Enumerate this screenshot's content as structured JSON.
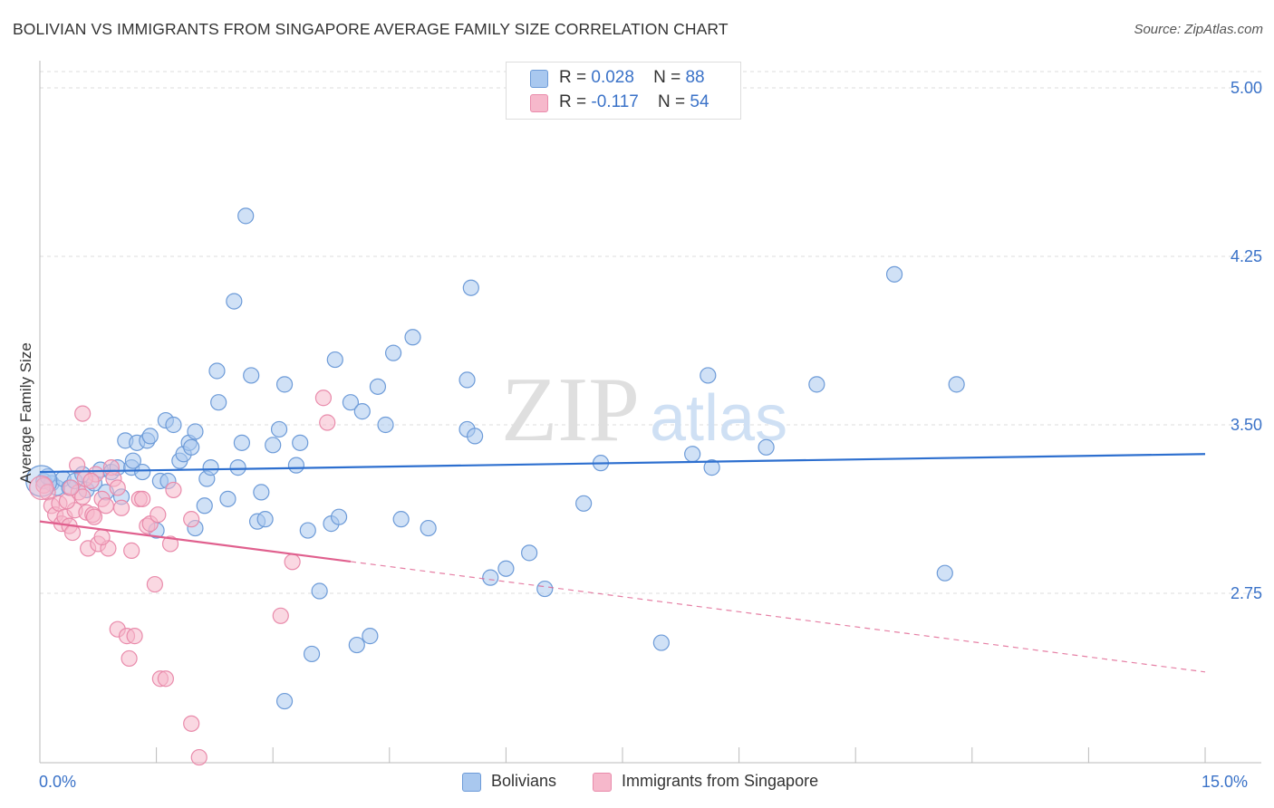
{
  "title": "BOLIVIAN VS IMMIGRANTS FROM SINGAPORE AVERAGE FAMILY SIZE CORRELATION CHART",
  "source": "Source: ZipAtlas.com",
  "watermark": {
    "zip": "ZIP",
    "atlas": "atlas"
  },
  "legend_top": {
    "rows": [
      {
        "r_label": "R =",
        "r_value": "0.028",
        "n_label": "N =",
        "n_value": "88"
      },
      {
        "r_label": "R =",
        "r_value": "-0.117",
        "n_label": "N =",
        "n_value": "54"
      }
    ]
  },
  "legend_bottom": {
    "series1": "Bolivians",
    "series2": "Immigrants from Singapore"
  },
  "colors": {
    "blue_fill": "#a9c8ef",
    "blue_stroke": "#6d9bd8",
    "blue_line": "#2d6fcf",
    "pink_fill": "#f6b8cb",
    "pink_stroke": "#e98bab",
    "pink_line": "#e0608e",
    "tick_text": "#3a72c8",
    "grid": "#dcdcdc"
  },
  "chart_data": {
    "type": "scatter",
    "title": "BOLIVIAN VS IMMIGRANTS FROM SINGAPORE AVERAGE FAMILY SIZE CORRELATION CHART",
    "xlabel": "",
    "ylabel": "Average Family Size",
    "xlim": [
      0.0,
      15.0
    ],
    "ylim": [
      2.0,
      5.12
    ],
    "x_tick_labels": [
      "0.0%",
      "15.0%"
    ],
    "y_ticks": [
      2.75,
      3.5,
      4.25,
      5.0
    ],
    "y_tick_labels": [
      "2.75",
      "3.50",
      "4.25",
      "5.00"
    ],
    "grid": true,
    "legend_placement": "top-center",
    "series": [
      {
        "name": "Bolivians",
        "R": 0.028,
        "N": 88,
        "trend": {
          "x": [
            0.0,
            15.0
          ],
          "y": [
            3.29,
            3.37
          ],
          "style": "solid"
        },
        "points": [
          [
            0.05,
            3.25
          ],
          [
            0.15,
            3.24
          ],
          [
            0.22,
            3.22
          ],
          [
            0.3,
            3.26
          ],
          [
            0.38,
            3.22
          ],
          [
            0.45,
            3.25
          ],
          [
            0.55,
            3.28
          ],
          [
            0.6,
            3.21
          ],
          [
            0.7,
            3.24
          ],
          [
            0.78,
            3.3
          ],
          [
            0.85,
            3.2
          ],
          [
            0.92,
            3.29
          ],
          [
            1.0,
            3.31
          ],
          [
            1.05,
            3.18
          ],
          [
            1.1,
            3.43
          ],
          [
            1.18,
            3.31
          ],
          [
            1.25,
            3.42
          ],
          [
            1.32,
            3.29
          ],
          [
            1.38,
            3.43
          ],
          [
            1.42,
            3.45
          ],
          [
            1.5,
            3.03
          ],
          [
            1.55,
            3.25
          ],
          [
            1.62,
            3.52
          ],
          [
            1.65,
            3.25
          ],
          [
            1.72,
            3.5
          ],
          [
            1.8,
            3.34
          ],
          [
            1.85,
            3.37
          ],
          [
            1.92,
            3.42
          ],
          [
            1.95,
            3.4
          ],
          [
            2.0,
            3.47
          ],
          [
            2.12,
            3.14
          ],
          [
            2.15,
            3.26
          ],
          [
            2.2,
            3.31
          ],
          [
            2.28,
            3.74
          ],
          [
            2.3,
            3.6
          ],
          [
            2.42,
            3.17
          ],
          [
            2.5,
            4.05
          ],
          [
            2.55,
            3.31
          ],
          [
            2.6,
            3.42
          ],
          [
            2.65,
            4.43
          ],
          [
            2.72,
            3.72
          ],
          [
            2.8,
            3.07
          ],
          [
            2.85,
            3.2
          ],
          [
            2.9,
            3.08
          ],
          [
            3.0,
            3.41
          ],
          [
            3.08,
            3.48
          ],
          [
            3.15,
            3.68
          ],
          [
            3.3,
            3.32
          ],
          [
            3.35,
            3.42
          ],
          [
            3.45,
            3.03
          ],
          [
            3.6,
            2.76
          ],
          [
            3.5,
            2.48
          ],
          [
            3.75,
            3.06
          ],
          [
            3.8,
            3.79
          ],
          [
            3.85,
            3.09
          ],
          [
            4.0,
            3.6
          ],
          [
            4.08,
            2.52
          ],
          [
            4.15,
            3.56
          ],
          [
            4.25,
            2.56
          ],
          [
            4.35,
            3.67
          ],
          [
            4.45,
            3.5
          ],
          [
            4.55,
            3.82
          ],
          [
            4.8,
            3.89
          ],
          [
            4.65,
            3.08
          ],
          [
            5.0,
            3.04
          ],
          [
            5.5,
            3.7
          ],
          [
            5.5,
            3.48
          ],
          [
            5.6,
            3.45
          ],
          [
            5.8,
            2.82
          ],
          [
            5.55,
            4.11
          ],
          [
            6.0,
            2.86
          ],
          [
            6.3,
            2.93
          ],
          [
            6.5,
            2.77
          ],
          [
            7.0,
            3.15
          ],
          [
            7.22,
            3.33
          ],
          [
            8.0,
            2.53
          ],
          [
            8.4,
            3.37
          ],
          [
            8.6,
            3.72
          ],
          [
            8.65,
            3.31
          ],
          [
            9.35,
            3.4
          ],
          [
            10.0,
            3.68
          ],
          [
            11.0,
            4.17
          ],
          [
            11.65,
            2.84
          ],
          [
            11.8,
            3.68
          ],
          [
            3.15,
            2.27
          ],
          [
            2.0,
            3.04
          ],
          [
            1.2,
            3.34
          ],
          [
            0.1,
            3.27
          ]
        ]
      },
      {
        "name": "Immigrants from Singapore",
        "R": -0.117,
        "N": 54,
        "trend": {
          "x_solid": [
            0.0,
            4.0
          ],
          "x_dashed": [
            4.0,
            15.0
          ],
          "y": [
            3.07,
            2.4
          ],
          "style": "solid-then-dashed"
        },
        "points": [
          [
            0.05,
            3.23
          ],
          [
            0.1,
            3.2
          ],
          [
            0.15,
            3.14
          ],
          [
            0.2,
            3.1
          ],
          [
            0.25,
            3.15
          ],
          [
            0.28,
            3.06
          ],
          [
            0.32,
            3.09
          ],
          [
            0.38,
            3.05
          ],
          [
            0.42,
            3.02
          ],
          [
            0.45,
            3.12
          ],
          [
            0.5,
            3.2
          ],
          [
            0.55,
            3.18
          ],
          [
            0.6,
            3.11
          ],
          [
            0.62,
            2.95
          ],
          [
            0.68,
            3.1
          ],
          [
            0.72,
            3.28
          ],
          [
            0.75,
            2.97
          ],
          [
            0.8,
            3.17
          ],
          [
            0.85,
            3.14
          ],
          [
            0.88,
            2.95
          ],
          [
            0.92,
            3.31
          ],
          [
            0.95,
            3.26
          ],
          [
            1.0,
            3.22
          ],
          [
            0.55,
            3.55
          ],
          [
            1.0,
            2.59
          ],
          [
            1.05,
            3.13
          ],
          [
            1.12,
            2.56
          ],
          [
            1.15,
            2.46
          ],
          [
            1.18,
            2.94
          ],
          [
            1.22,
            2.56
          ],
          [
            1.28,
            3.17
          ],
          [
            1.32,
            3.17
          ],
          [
            1.38,
            3.05
          ],
          [
            1.42,
            3.06
          ],
          [
            1.48,
            2.79
          ],
          [
            1.52,
            3.1
          ],
          [
            1.55,
            2.37
          ],
          [
            1.62,
            2.37
          ],
          [
            1.68,
            2.97
          ],
          [
            1.72,
            3.21
          ],
          [
            1.95,
            3.08
          ],
          [
            1.95,
            2.17
          ],
          [
            2.05,
            2.02
          ],
          [
            3.1,
            2.65
          ],
          [
            3.25,
            2.89
          ],
          [
            3.65,
            3.62
          ],
          [
            3.7,
            3.51
          ],
          [
            0.35,
            3.16
          ],
          [
            0.4,
            3.22
          ],
          [
            0.48,
            3.32
          ],
          [
            0.58,
            3.26
          ],
          [
            0.66,
            3.25
          ],
          [
            0.7,
            3.09
          ],
          [
            0.8,
            3.0
          ]
        ]
      }
    ]
  }
}
